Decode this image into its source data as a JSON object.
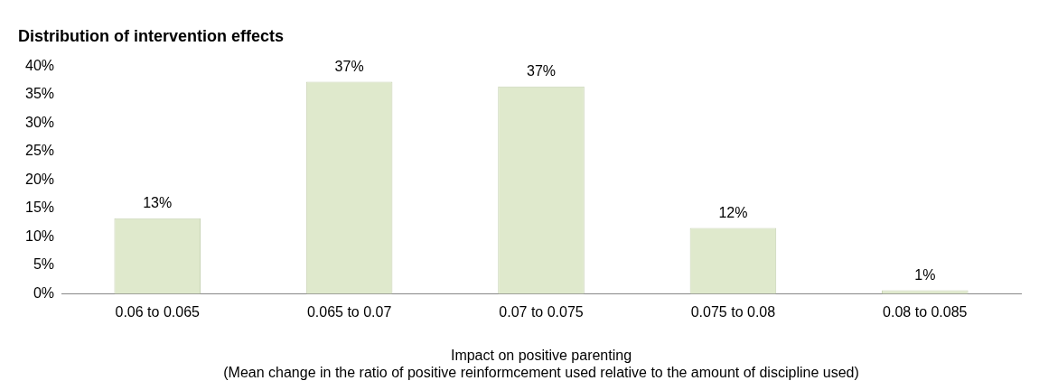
{
  "chart_data": {
    "type": "bar",
    "title": "Distribution of intervention effects",
    "xlabel": "Impact on positive parenting\n(Mean change in the ratio of positive reinformcement used relative to the amount of discipline used)",
    "categories": [
      "0.06 to 0.065",
      "0.065 to 0.07",
      "0.07 to 0.075",
      "0.075 to 0.08",
      "0.08 to 0.085"
    ],
    "values": [
      13.3,
      37.3,
      36.5,
      11.6,
      0.6
    ],
    "value_labels": [
      "13%",
      "37%",
      "37%",
      "12%",
      "1%"
    ],
    "color": "#dfe9cc",
    "ylim": [
      0,
      40
    ],
    "yticks": [
      {
        "value": 0,
        "label": "0%"
      },
      {
        "value": 5,
        "label": "5%"
      },
      {
        "value": 10,
        "label": "10%"
      },
      {
        "value": 15,
        "label": "15%"
      },
      {
        "value": 20,
        "label": "20%"
      },
      {
        "value": 25,
        "label": "25%"
      },
      {
        "value": 30,
        "label": "30%"
      },
      {
        "value": 35,
        "label": "35%"
      },
      {
        "value": 40,
        "label": "40%"
      }
    ],
    "grid": false,
    "legend": false
  }
}
